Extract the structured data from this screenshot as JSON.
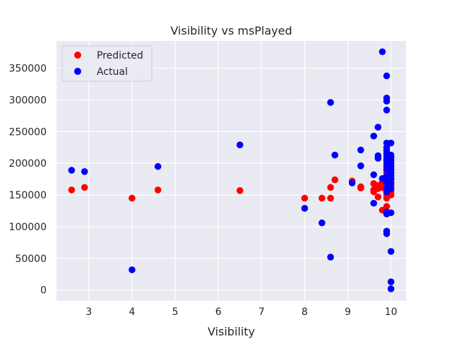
{
  "chart_data": {
    "type": "scatter",
    "title": "Visibility vs msPlayed",
    "xlabel": "Visibility",
    "ylabel": "",
    "xlim": [
      2.25,
      10.35
    ],
    "ylim": [
      -17000,
      393000
    ],
    "xticks": [
      3,
      4,
      5,
      6,
      7,
      8,
      9,
      10
    ],
    "yticks": [
      0,
      50000,
      100000,
      150000,
      200000,
      250000,
      300000,
      350000
    ],
    "grid": true,
    "legend_position": "top-left",
    "series": [
      {
        "name": "Predicted",
        "color": "#ff0000",
        "points": [
          [
            2.6,
            158000
          ],
          [
            2.9,
            162000
          ],
          [
            4.0,
            145000
          ],
          [
            4.6,
            158000
          ],
          [
            6.5,
            157000
          ],
          [
            8.0,
            145000
          ],
          [
            8.4,
            145000
          ],
          [
            8.6,
            145000
          ],
          [
            8.6,
            162000
          ],
          [
            8.7,
            174000
          ],
          [
            9.1,
            172000
          ],
          [
            9.3,
            161000
          ],
          [
            9.3,
            163000
          ],
          [
            9.6,
            155000
          ],
          [
            9.6,
            158000
          ],
          [
            9.6,
            168000
          ],
          [
            9.7,
            147000
          ],
          [
            9.7,
            160000
          ],
          [
            9.7,
            165000
          ],
          [
            9.8,
            126000
          ],
          [
            9.8,
            162000
          ],
          [
            9.8,
            170000
          ],
          [
            9.9,
            132000
          ],
          [
            9.9,
            145000
          ],
          [
            9.9,
            150000
          ],
          [
            9.9,
            155000
          ],
          [
            9.9,
            160000
          ],
          [
            9.9,
            165000
          ],
          [
            9.9,
            172000
          ],
          [
            9.9,
            178000
          ],
          [
            9.9,
            185000
          ],
          [
            10.0,
            150000
          ],
          [
            10.0,
            155000
          ],
          [
            10.0,
            160000
          ],
          [
            10.0,
            165000
          ],
          [
            10.0,
            170000
          ],
          [
            10.0,
            175000
          ]
        ]
      },
      {
        "name": "Actual",
        "color": "#0000ff",
        "points": [
          [
            2.6,
            189000
          ],
          [
            2.9,
            187000
          ],
          [
            4.0,
            32000
          ],
          [
            4.6,
            195000
          ],
          [
            6.5,
            229000
          ],
          [
            8.0,
            129000
          ],
          [
            8.4,
            106000
          ],
          [
            8.6,
            52000
          ],
          [
            8.6,
            296000
          ],
          [
            8.7,
            213000
          ],
          [
            9.1,
            169000
          ],
          [
            9.3,
            196000
          ],
          [
            9.3,
            221000
          ],
          [
            9.6,
            137000
          ],
          [
            9.6,
            182000
          ],
          [
            9.6,
            243000
          ],
          [
            9.7,
            208000
          ],
          [
            9.7,
            212000
          ],
          [
            9.7,
            257000
          ],
          [
            9.8,
            176000
          ],
          [
            9.8,
            376000
          ],
          [
            9.9,
            89000
          ],
          [
            9.9,
            93000
          ],
          [
            9.9,
            120000
          ],
          [
            9.9,
            123000
          ],
          [
            9.9,
            155000
          ],
          [
            9.9,
            160000
          ],
          [
            9.9,
            170000
          ],
          [
            9.9,
            180000
          ],
          [
            9.9,
            190000
          ],
          [
            9.9,
            195000
          ],
          [
            9.9,
            200000
          ],
          [
            9.9,
            205000
          ],
          [
            9.9,
            210000
          ],
          [
            9.9,
            215000
          ],
          [
            9.9,
            220000
          ],
          [
            9.9,
            225000
          ],
          [
            9.9,
            232000
          ],
          [
            9.9,
            284000
          ],
          [
            9.9,
            298000
          ],
          [
            9.9,
            303000
          ],
          [
            9.9,
            338000
          ],
          [
            10.0,
            2000
          ],
          [
            10.0,
            13000
          ],
          [
            10.0,
            61000
          ],
          [
            10.0,
            122000
          ],
          [
            10.0,
            160000
          ],
          [
            10.0,
            168000
          ],
          [
            10.0,
            175000
          ],
          [
            10.0,
            180000
          ],
          [
            10.0,
            185000
          ],
          [
            10.0,
            190000
          ],
          [
            10.0,
            195000
          ],
          [
            10.0,
            200000
          ],
          [
            10.0,
            205000
          ],
          [
            10.0,
            210000
          ],
          [
            10.0,
            213000
          ],
          [
            10.0,
            232000
          ]
        ]
      }
    ]
  }
}
